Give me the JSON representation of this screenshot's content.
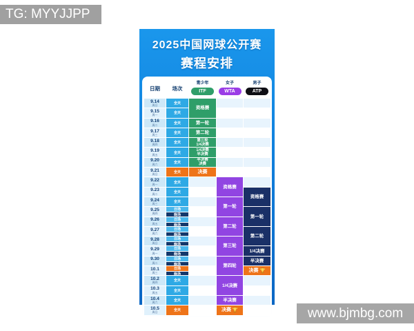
{
  "watermarks": {
    "tg": "TG: MYYJJPP",
    "site": "www.bjmbg.com"
  },
  "poster": {
    "title_line1": "2025中国网球公开赛",
    "title_line2": "赛程安排",
    "header": {
      "date_label": "日期",
      "session_label": "场次",
      "groups": [
        {
          "label": "青少年",
          "pill": "ITF"
        },
        {
          "label": "女子",
          "pill": "WTA"
        },
        {
          "label": "男子",
          "pill": "ATP"
        }
      ]
    },
    "colors": {
      "poster_top": "#1a97ec",
      "poster_bottom": "#0c67c4",
      "itf_green": "#2f9e69",
      "wta_purple": "#9145e2",
      "atp_navy": "#1a3067",
      "final_orange": "#ee7419",
      "session_allday": "#2ea9e5",
      "session_day": "#49b7ec",
      "session_night": "#14386b",
      "trophy_gold": "#ffd24d"
    },
    "rows": [
      {
        "date": "9.14",
        "weekday": "周日",
        "sessions": [
          {
            "label": "全天",
            "type": "allday"
          }
        ],
        "itf": {
          "lines": [
            "资格赛"
          ],
          "span": 2
        }
      },
      {
        "date": "9.15",
        "weekday": "周一",
        "sessions": [
          {
            "label": "全天",
            "type": "allday"
          }
        ]
      },
      {
        "date": "9.16",
        "weekday": "周二",
        "sessions": [
          {
            "label": "全天",
            "type": "allday"
          }
        ],
        "itf": {
          "lines": [
            "第一轮"
          ]
        }
      },
      {
        "date": "9.17",
        "weekday": "周三",
        "sessions": [
          {
            "label": "全天",
            "type": "allday"
          }
        ],
        "itf": {
          "lines": [
            "第二轮"
          ]
        }
      },
      {
        "date": "9.18",
        "weekday": "周四",
        "sessions": [
          {
            "label": "全天",
            "type": "allday"
          }
        ],
        "itf": {
          "lines": [
            "第三轮",
            "1/4决赛"
          ]
        }
      },
      {
        "date": "9.19",
        "weekday": "周五",
        "sessions": [
          {
            "label": "全天",
            "type": "allday"
          }
        ],
        "itf": {
          "lines": [
            "1/4决赛",
            "半决赛"
          ]
        }
      },
      {
        "date": "9.20",
        "weekday": "周六",
        "sessions": [
          {
            "label": "全天",
            "type": "allday"
          }
        ],
        "itf": {
          "lines": [
            "半决赛",
            "决赛"
          ]
        }
      },
      {
        "date": "9.21",
        "weekday": "周日",
        "sessions": [
          {
            "label": "全天",
            "type": "final"
          }
        ],
        "itf": {
          "lines": [
            "决赛"
          ],
          "type": "final"
        }
      },
      {
        "date": "9.22",
        "weekday": "周一",
        "sessions": [
          {
            "label": "全天",
            "type": "allday"
          }
        ],
        "wta": {
          "lines": [
            "资格赛"
          ],
          "span": 2
        }
      },
      {
        "date": "9.23",
        "weekday": "周二",
        "sessions": [
          {
            "label": "全天",
            "type": "allday"
          }
        ],
        "atp": {
          "lines": [
            "资格赛"
          ],
          "span": 2
        }
      },
      {
        "date": "9.24",
        "weekday": "周三",
        "sessions": [
          {
            "label": "全天",
            "type": "allday"
          }
        ],
        "wta": {
          "lines": [
            "第一轮"
          ],
          "span": 2
        }
      },
      {
        "date": "9.25",
        "weekday": "周四",
        "sessions": [
          {
            "label": "日场",
            "type": "day"
          },
          {
            "label": "晚场",
            "type": "night"
          }
        ],
        "atp": {
          "lines": [
            "第一轮"
          ],
          "span": 2
        }
      },
      {
        "date": "9.26",
        "weekday": "周五",
        "sessions": [
          {
            "label": "日场",
            "type": "day"
          },
          {
            "label": "晚场",
            "type": "night"
          }
        ],
        "wta": {
          "lines": [
            "第二轮"
          ],
          "span": 2
        }
      },
      {
        "date": "9.27",
        "weekday": "周六",
        "sessions": [
          {
            "label": "日场",
            "type": "day"
          },
          {
            "label": "晚场",
            "type": "night"
          }
        ],
        "atp": {
          "lines": [
            "第二轮"
          ],
          "span": 2
        }
      },
      {
        "date": "9.28",
        "weekday": "周日",
        "sessions": [
          {
            "label": "日场",
            "type": "day"
          },
          {
            "label": "晚场",
            "type": "night"
          }
        ],
        "wta": {
          "lines": [
            "第三轮"
          ],
          "span": 2
        }
      },
      {
        "date": "9.29",
        "weekday": "周一",
        "sessions": [
          {
            "label": "日场",
            "type": "day"
          },
          {
            "label": "晚场",
            "type": "night"
          }
        ],
        "atp": {
          "lines": [
            "1/4决赛"
          ]
        }
      },
      {
        "date": "9.30",
        "weekday": "周二",
        "sessions": [
          {
            "label": "日场",
            "type": "day"
          },
          {
            "label": "晚场",
            "type": "night"
          }
        ],
        "wta": {
          "lines": [
            "第四轮"
          ],
          "span": 2
        },
        "atp": {
          "lines": [
            "半决赛"
          ]
        }
      },
      {
        "date": "10.1",
        "weekday": "周三",
        "sessions": [
          {
            "label": "日场",
            "type": "final"
          },
          {
            "label": "晚场",
            "type": "night"
          }
        ],
        "atp": {
          "lines": [
            "决赛"
          ],
          "type": "final",
          "trophy": true
        }
      },
      {
        "date": "10.2",
        "weekday": "周四",
        "sessions": [
          {
            "label": "全天",
            "type": "allday"
          }
        ],
        "wta": {
          "lines": [
            "1/4决赛"
          ],
          "span": 2
        }
      },
      {
        "date": "10.3",
        "weekday": "周五",
        "sessions": [
          {
            "label": "全天",
            "type": "allday"
          }
        ]
      },
      {
        "date": "10.4",
        "weekday": "周六",
        "sessions": [
          {
            "label": "全天",
            "type": "allday"
          }
        ],
        "wta": {
          "lines": [
            "半决赛"
          ]
        }
      },
      {
        "date": "10.5",
        "weekday": "周日",
        "sessions": [
          {
            "label": "全天",
            "type": "final"
          }
        ],
        "wta": {
          "lines": [
            "决赛"
          ],
          "type": "final",
          "trophy": true
        }
      }
    ]
  }
}
